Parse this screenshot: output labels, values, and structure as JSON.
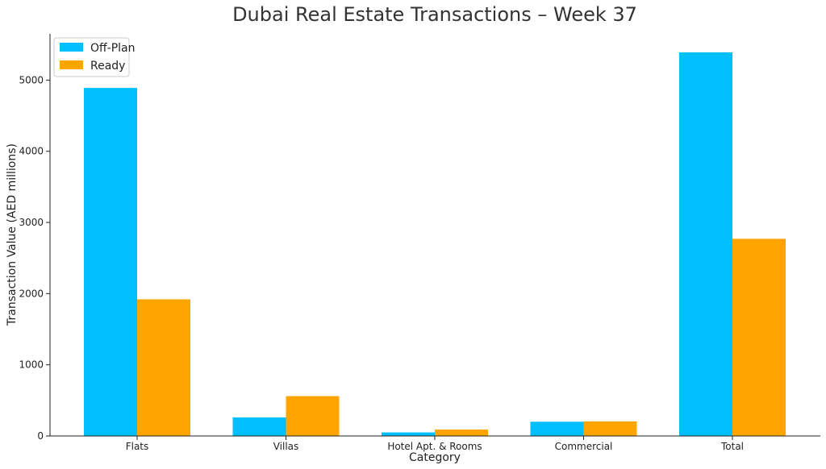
{
  "chart_data": {
    "type": "bar",
    "title": "Dubai Real Estate Transactions – Week 37",
    "xlabel": "Category",
    "ylabel": "Transaction Value (AED millions)",
    "categories": [
      "Flats",
      "Villas",
      "Hotel Apt. & Rooms",
      "Commercial",
      "Total"
    ],
    "series": [
      {
        "name": "Off-Plan",
        "color": "#00BFFF",
        "values": [
          4890,
          260,
          50,
          200,
          5390
        ]
      },
      {
        "name": "Ready",
        "color": "#FFA500",
        "values": [
          1920,
          560,
          90,
          205,
          2770
        ]
      }
    ],
    "ylim": [
      0,
      5650
    ],
    "yticks": [
      0,
      1000,
      2000,
      3000,
      4000,
      5000
    ],
    "grid": false,
    "legend_position": "top-left"
  }
}
